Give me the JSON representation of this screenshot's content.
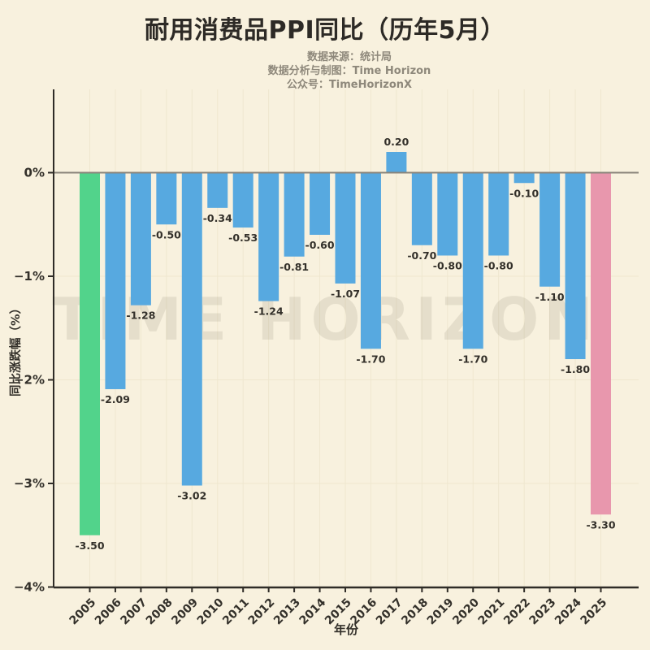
{
  "page": {
    "background": "#f8f1de"
  },
  "header": {
    "title": "耐用消费品PPI同比（历年5月）",
    "subtitle_lines": [
      "数据来源：统计局",
      "数据分析与制图：Time Horizon",
      "公众号：TimeHorizonX"
    ]
  },
  "watermark": "TIME HORIZON",
  "chart_data": {
    "type": "bar",
    "title": "耐用消费品PPI同比（历年5月）",
    "xlabel": "年份",
    "ylabel": "同比涨跌幅（%）",
    "categories": [
      "2005",
      "2006",
      "2007",
      "2008",
      "2009",
      "2010",
      "2011",
      "2012",
      "2013",
      "2014",
      "2015",
      "2016",
      "2017",
      "2018",
      "2019",
      "2020",
      "2021",
      "2022",
      "2023",
      "2024",
      "2025"
    ],
    "values": [
      -3.5,
      -2.09,
      -1.28,
      -0.5,
      -3.02,
      -0.34,
      -0.53,
      -1.24,
      -0.81,
      -0.6,
      -1.07,
      -1.7,
      0.2,
      -0.7,
      -0.8,
      -1.7,
      -0.8,
      -0.1,
      -1.1,
      -1.8,
      -3.3
    ],
    "value_labels": [
      "-3.50",
      "-2.09",
      "-1.28",
      "-0.50",
      "-3.02",
      "-0.34",
      "-0.53",
      "-1.24",
      "-0.81",
      "-0.60",
      "-1.07",
      "-1.70",
      "0.20",
      "-0.70",
      "-0.80",
      "-1.70",
      "-0.80",
      "-0.10",
      "-1.10",
      "-1.80",
      "-3.30"
    ],
    "bar_colors": [
      "#52d38b",
      "#57a9e0",
      "#57a9e0",
      "#57a9e0",
      "#57a9e0",
      "#57a9e0",
      "#57a9e0",
      "#57a9e0",
      "#57a9e0",
      "#57a9e0",
      "#57a9e0",
      "#57a9e0",
      "#57a9e0",
      "#57a9e0",
      "#57a9e0",
      "#57a9e0",
      "#57a9e0",
      "#57a9e0",
      "#57a9e0",
      "#57a9e0",
      "#e897ad"
    ],
    "ytick_labels": [
      "0%",
      "−1%",
      "−2%",
      "−3%",
      "−4%"
    ],
    "ytick_values": [
      0,
      -1,
      -2,
      -3,
      -4
    ],
    "ylim": [
      -4,
      0.8
    ],
    "grid": true,
    "legend": "none",
    "colors": {
      "default_bar": "#57a9e0",
      "first_bar_highlight": "#52d38b",
      "last_bar_highlight": "#e897ad",
      "axis": "#2f2c27",
      "zero_line": "#8a857b",
      "grid": "#efe7cf",
      "text": "#33302a",
      "subtitle_text": "#8e887b",
      "watermark": "#6f6activate755"
    }
  }
}
